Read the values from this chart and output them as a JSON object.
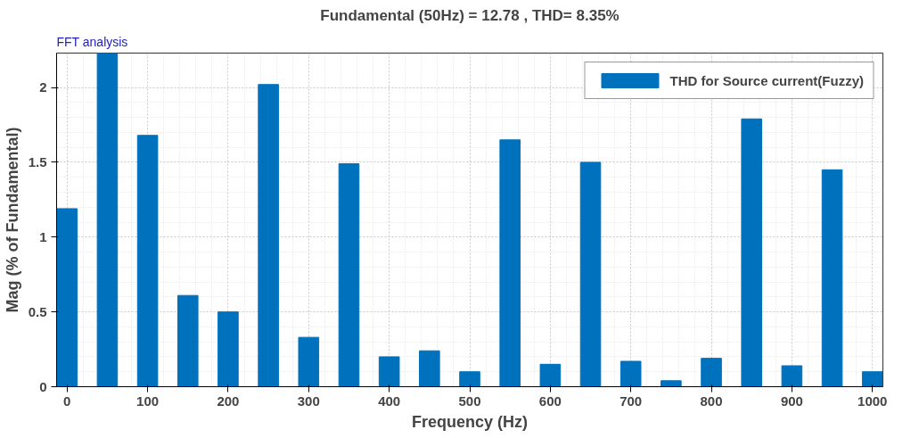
{
  "chart_data": {
    "type": "bar",
    "title": "Fundamental (50Hz) = 12.78 , THD= 8.35%",
    "annotations": [
      "FFT analysis"
    ],
    "xlabel": "Frequency (Hz)",
    "ylabel": "Mag (% of Fundamental)",
    "x": [
      0,
      50,
      100,
      150,
      200,
      250,
      300,
      350,
      400,
      450,
      500,
      550,
      600,
      650,
      700,
      750,
      800,
      850,
      900,
      950,
      1000
    ],
    "series": [
      {
        "name": "THD for Source current(Fuzzy)",
        "color": "#0072bd",
        "values": [
          1.19,
          2.23,
          1.68,
          0.61,
          0.5,
          2.02,
          0.33,
          1.49,
          0.2,
          0.24,
          0.1,
          1.65,
          0.15,
          1.5,
          0.17,
          0.04,
          0.19,
          1.79,
          0.14,
          1.45,
          0.1
        ]
      }
    ],
    "xlim": [
      -13,
      1013
    ],
    "ylim": [
      0,
      2.23
    ],
    "xticks": [
      0,
      100,
      200,
      300,
      400,
      500,
      600,
      700,
      800,
      900,
      1000
    ],
    "yticks": [
      0,
      0.5,
      1,
      1.5,
      2
    ],
    "grid": true,
    "legend": "top right"
  }
}
